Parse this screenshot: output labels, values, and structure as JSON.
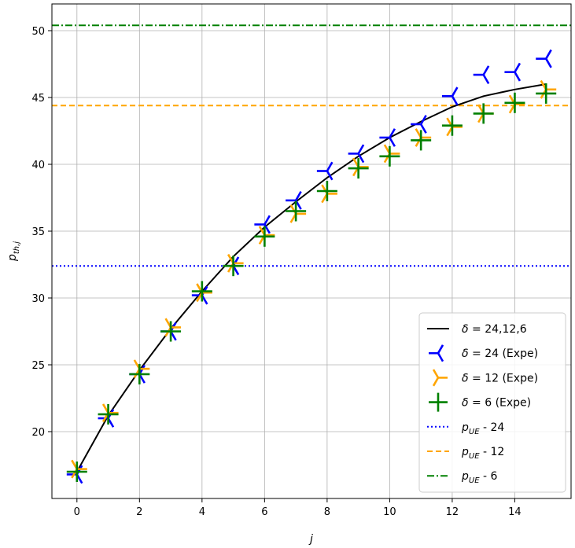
{
  "chart_data": {
    "type": "line",
    "xlabel": "j",
    "ylabel": "p_th,j",
    "xlim": [
      -0.8,
      15.8
    ],
    "ylim": [
      15,
      52
    ],
    "x_ticks": [
      0,
      2,
      4,
      6,
      8,
      10,
      12,
      14
    ],
    "y_ticks": [
      20,
      25,
      30,
      35,
      40,
      45,
      50
    ],
    "grid": true,
    "legend_position": "lower-right",
    "series": [
      {
        "name": "δ = 24,12,6",
        "style": "line",
        "color": "#000000",
        "x": [
          0,
          1,
          2,
          3,
          4,
          5,
          6,
          7,
          8,
          9,
          10,
          11,
          12,
          13,
          14,
          15
        ],
        "y": [
          17.0,
          21.2,
          24.6,
          27.7,
          30.5,
          33.1,
          35.3,
          37.2,
          39.0,
          40.6,
          42.0,
          43.2,
          44.3,
          45.1,
          45.6,
          46.0
        ]
      },
      {
        "name": "δ = 24 (Expe)",
        "style": "marker",
        "marker": "tri_left",
        "color": "#0000ff",
        "x": [
          0,
          1,
          2,
          3,
          4,
          5,
          6,
          7,
          8,
          9,
          10,
          11,
          12,
          13,
          14,
          15
        ],
        "y": [
          16.8,
          21.0,
          24.3,
          27.5,
          30.2,
          32.4,
          35.5,
          37.3,
          39.5,
          40.8,
          42.0,
          43.0,
          45.1,
          46.7,
          46.9,
          47.9
        ]
      },
      {
        "name": "δ = 12 (Expe)",
        "style": "marker",
        "marker": "tri_right",
        "color": "#ffa500",
        "x": [
          0,
          1,
          2,
          3,
          4,
          5,
          6,
          7,
          8,
          9,
          10,
          11,
          12,
          13,
          14,
          15
        ],
        "y": [
          17.2,
          21.4,
          24.7,
          27.8,
          30.4,
          32.6,
          34.7,
          36.3,
          37.8,
          39.8,
          40.8,
          42.0,
          42.8,
          43.8,
          44.5,
          45.6
        ]
      },
      {
        "name": "δ = 6 (Expe)",
        "style": "marker",
        "marker": "plus",
        "color": "#008000",
        "x": [
          0,
          1,
          2,
          3,
          4,
          5,
          6,
          7,
          8,
          9,
          10,
          11,
          12,
          13,
          14,
          15
        ],
        "y": [
          17.0,
          21.3,
          24.3,
          27.5,
          30.5,
          32.4,
          34.6,
          36.5,
          38.0,
          39.7,
          40.6,
          41.8,
          42.9,
          43.8,
          44.6,
          45.3
        ]
      },
      {
        "name": "p_UE - 24",
        "style": "hline",
        "linestyle": "dotted",
        "color": "#0000ff",
        "y": 32.4
      },
      {
        "name": "p_UE - 12",
        "style": "hline",
        "linestyle": "dashed",
        "color": "#ffa500",
        "y": 44.4
      },
      {
        "name": "p_UE - 6",
        "style": "hline",
        "linestyle": "dashdot",
        "color": "#008000",
        "y": 50.4
      }
    ]
  }
}
